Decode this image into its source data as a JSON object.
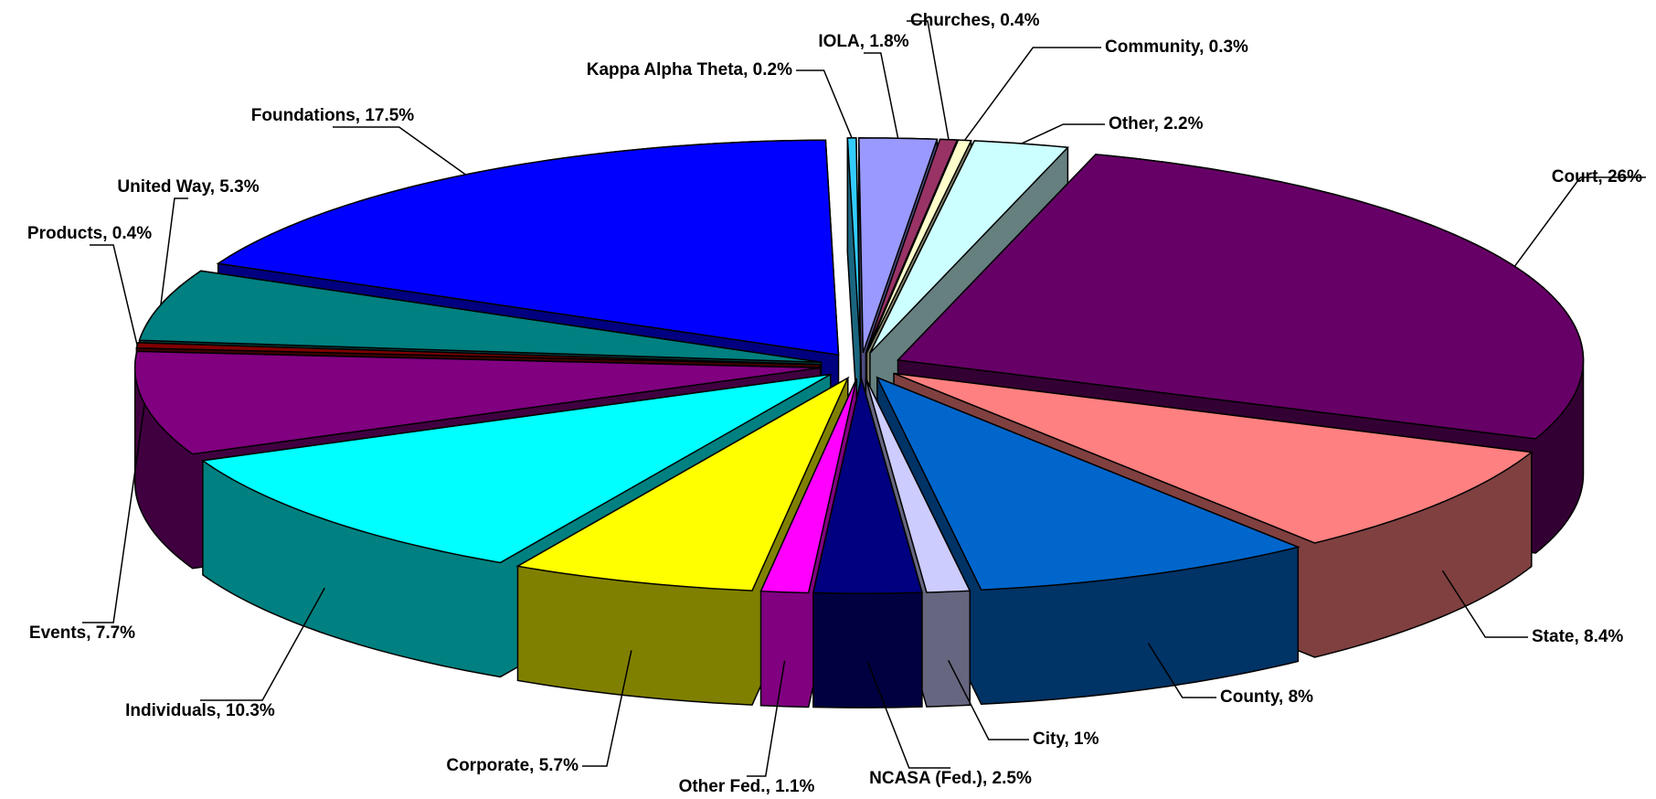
{
  "chart_data": {
    "type": "pie3d",
    "value_labels": [
      "Kappa Alpha Theta, 0.2%",
      "IOLA, 1.8%",
      "Churches, 0.4%",
      "Community, 0.3%",
      "Other, 2.2%",
      "Court, 26%",
      "State, 8.4%",
      "County, 8%",
      "City, 1%",
      "NCASA (Fed.), 2.5%",
      "Other Fed., 1.1%",
      "Corporate, 5.7%",
      "Individuals, 10.3%",
      "Events, 7.7%",
      "Products, 0.4%",
      "United Way, 5.3%",
      "Foundations, 17.5%"
    ],
    "values": [
      0.2,
      1.8,
      0.4,
      0.3,
      2.2,
      26,
      8.4,
      8,
      1,
      2.5,
      1.1,
      5.7,
      10.3,
      7.7,
      0.4,
      5.3,
      17.5
    ],
    "colors": [
      "#33ccff",
      "#9999ff",
      "#993366",
      "#ffffcc",
      "#ccffff",
      "#660066",
      "#ff8080",
      "#0066cc",
      "#ccccff",
      "#000080",
      "#ff00ff",
      "#ffff00",
      "#00ffff",
      "#800080",
      "#800000",
      "#008080",
      "#0000ff"
    ]
  }
}
